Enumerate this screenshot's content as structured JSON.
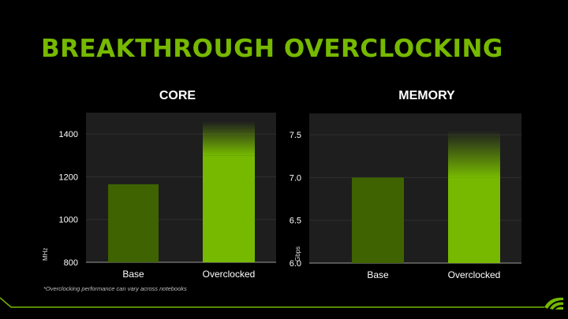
{
  "slide": {
    "title": "BREAKTHROUGH OVERCLOCKING",
    "footnote": "*Overclocking performance can vary across notebooks"
  },
  "colors": {
    "accent": "#76b900",
    "base_bar": "#3e6300",
    "plot_bg": "#1e1e1e",
    "grid": "#2e2e2e",
    "background": "#000000"
  },
  "icons": {
    "logo": "nvidia-eye-logo-icon"
  },
  "chart_data": [
    {
      "type": "bar",
      "title": "CORE",
      "ylabel": "MHz",
      "xlabel": "",
      "categories": [
        "Base",
        "Overclocked"
      ],
      "values": [
        1165,
        1300
      ],
      "overclock_headroom_top": 1460,
      "ylim": [
        800,
        1500
      ],
      "yticks": [
        800,
        1000,
        1200,
        1400
      ],
      "grid": true,
      "legend": "none"
    },
    {
      "type": "bar",
      "title": "MEMORY",
      "ylabel": "Gbps",
      "xlabel": "",
      "categories": [
        "Base",
        "Overclocked"
      ],
      "values": [
        7.0,
        7.0
      ],
      "overclock_headroom_top": 7.55,
      "ylim": [
        6.0,
        7.75
      ],
      "yticks": [
        6.0,
        6.5,
        7.0,
        7.5
      ],
      "grid": true,
      "legend": "none"
    }
  ]
}
